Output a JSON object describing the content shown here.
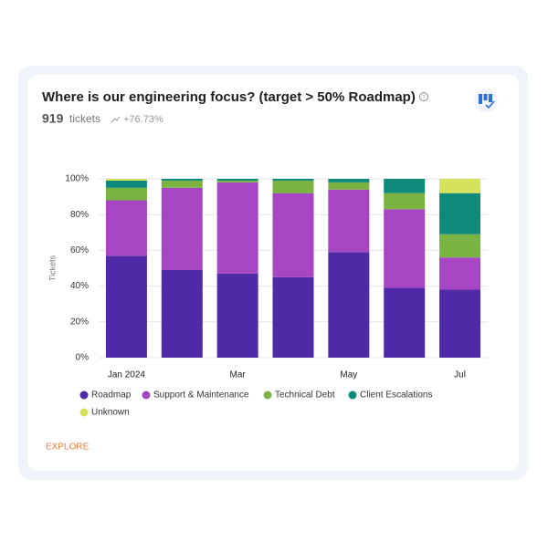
{
  "header": {
    "title": "Where is our engineering focus? (target > 50% Roadmap)",
    "count": "919",
    "count_unit": "tickets",
    "change": "+76.73%"
  },
  "link": "EXPLORE",
  "chart_data": {
    "type": "stacked_bar",
    "categories": [
      "Jan 2024",
      null,
      "Mar",
      null,
      "May",
      null,
      "Jul"
    ],
    "y_label": "Tickets",
    "ylim": [
      0,
      100
    ],
    "yticks": [
      {
        "value": 0,
        "label": "0%"
      },
      {
        "value": 20,
        "label": "20%"
      },
      {
        "value": 40,
        "label": "40%"
      },
      {
        "value": 60,
        "label": "60%"
      },
      {
        "value": 80,
        "label": "80%"
      },
      {
        "value": 100,
        "label": "100%"
      }
    ],
    "grid": true,
    "series": [
      {
        "name": "Roadmap",
        "color": "#4f2aa6",
        "values": [
          57,
          49,
          47,
          45,
          59,
          39,
          38
        ]
      },
      {
        "name": "Support & Maintenance",
        "color": "#a646c2",
        "values": [
          31,
          46,
          51,
          47,
          35,
          44,
          18
        ]
      },
      {
        "name": "Technical Debt",
        "color": "#7bb342",
        "values": [
          7,
          4,
          1,
          7,
          4,
          9,
          13
        ]
      },
      {
        "name": "Client Escalations",
        "color": "#0e8a7a",
        "values": [
          4,
          1,
          1,
          1,
          2,
          8,
          23
        ]
      },
      {
        "name": "Unknown",
        "color": "#d6e25a",
        "values": [
          1,
          0,
          0,
          0,
          0,
          0,
          8
        ]
      }
    ]
  }
}
